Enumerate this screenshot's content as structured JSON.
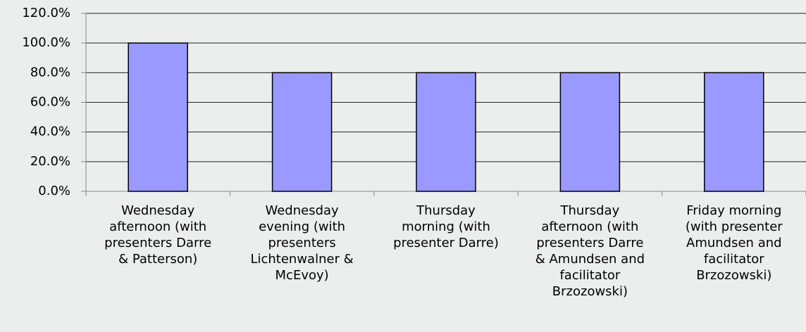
{
  "chart_data": {
    "type": "bar",
    "categories": [
      "Wednesday\nafternoon (with\npresenters Darre\n& Patterson)",
      "Wednesday\nevening (with\npresenters\nLichtenwalner &\nMcEvoy)",
      "Thursday\nmorning (with\npresenter Darre)",
      "Thursday\nafternoon (with\npresenters Darre\n& Amundsen and\nfacilitator\nBrzozowski)",
      "Friday morning\n(with presenter\nAmundsen and\nfacilitator\nBrzozowski)"
    ],
    "values": [
      100,
      80,
      80,
      80,
      80
    ],
    "color": "#9999ff",
    "ylim": [
      0,
      120
    ],
    "yticks": [
      {
        "value": 0,
        "label": "0.0%"
      },
      {
        "value": 20,
        "label": "20.0%"
      },
      {
        "value": 40,
        "label": "40.0%"
      },
      {
        "value": 60,
        "label": "60.0%"
      },
      {
        "value": 80,
        "label": "80.0%"
      },
      {
        "value": 100,
        "label": "100.0%"
      },
      {
        "value": 120,
        "label": "120.0%"
      }
    ],
    "grid": true
  }
}
